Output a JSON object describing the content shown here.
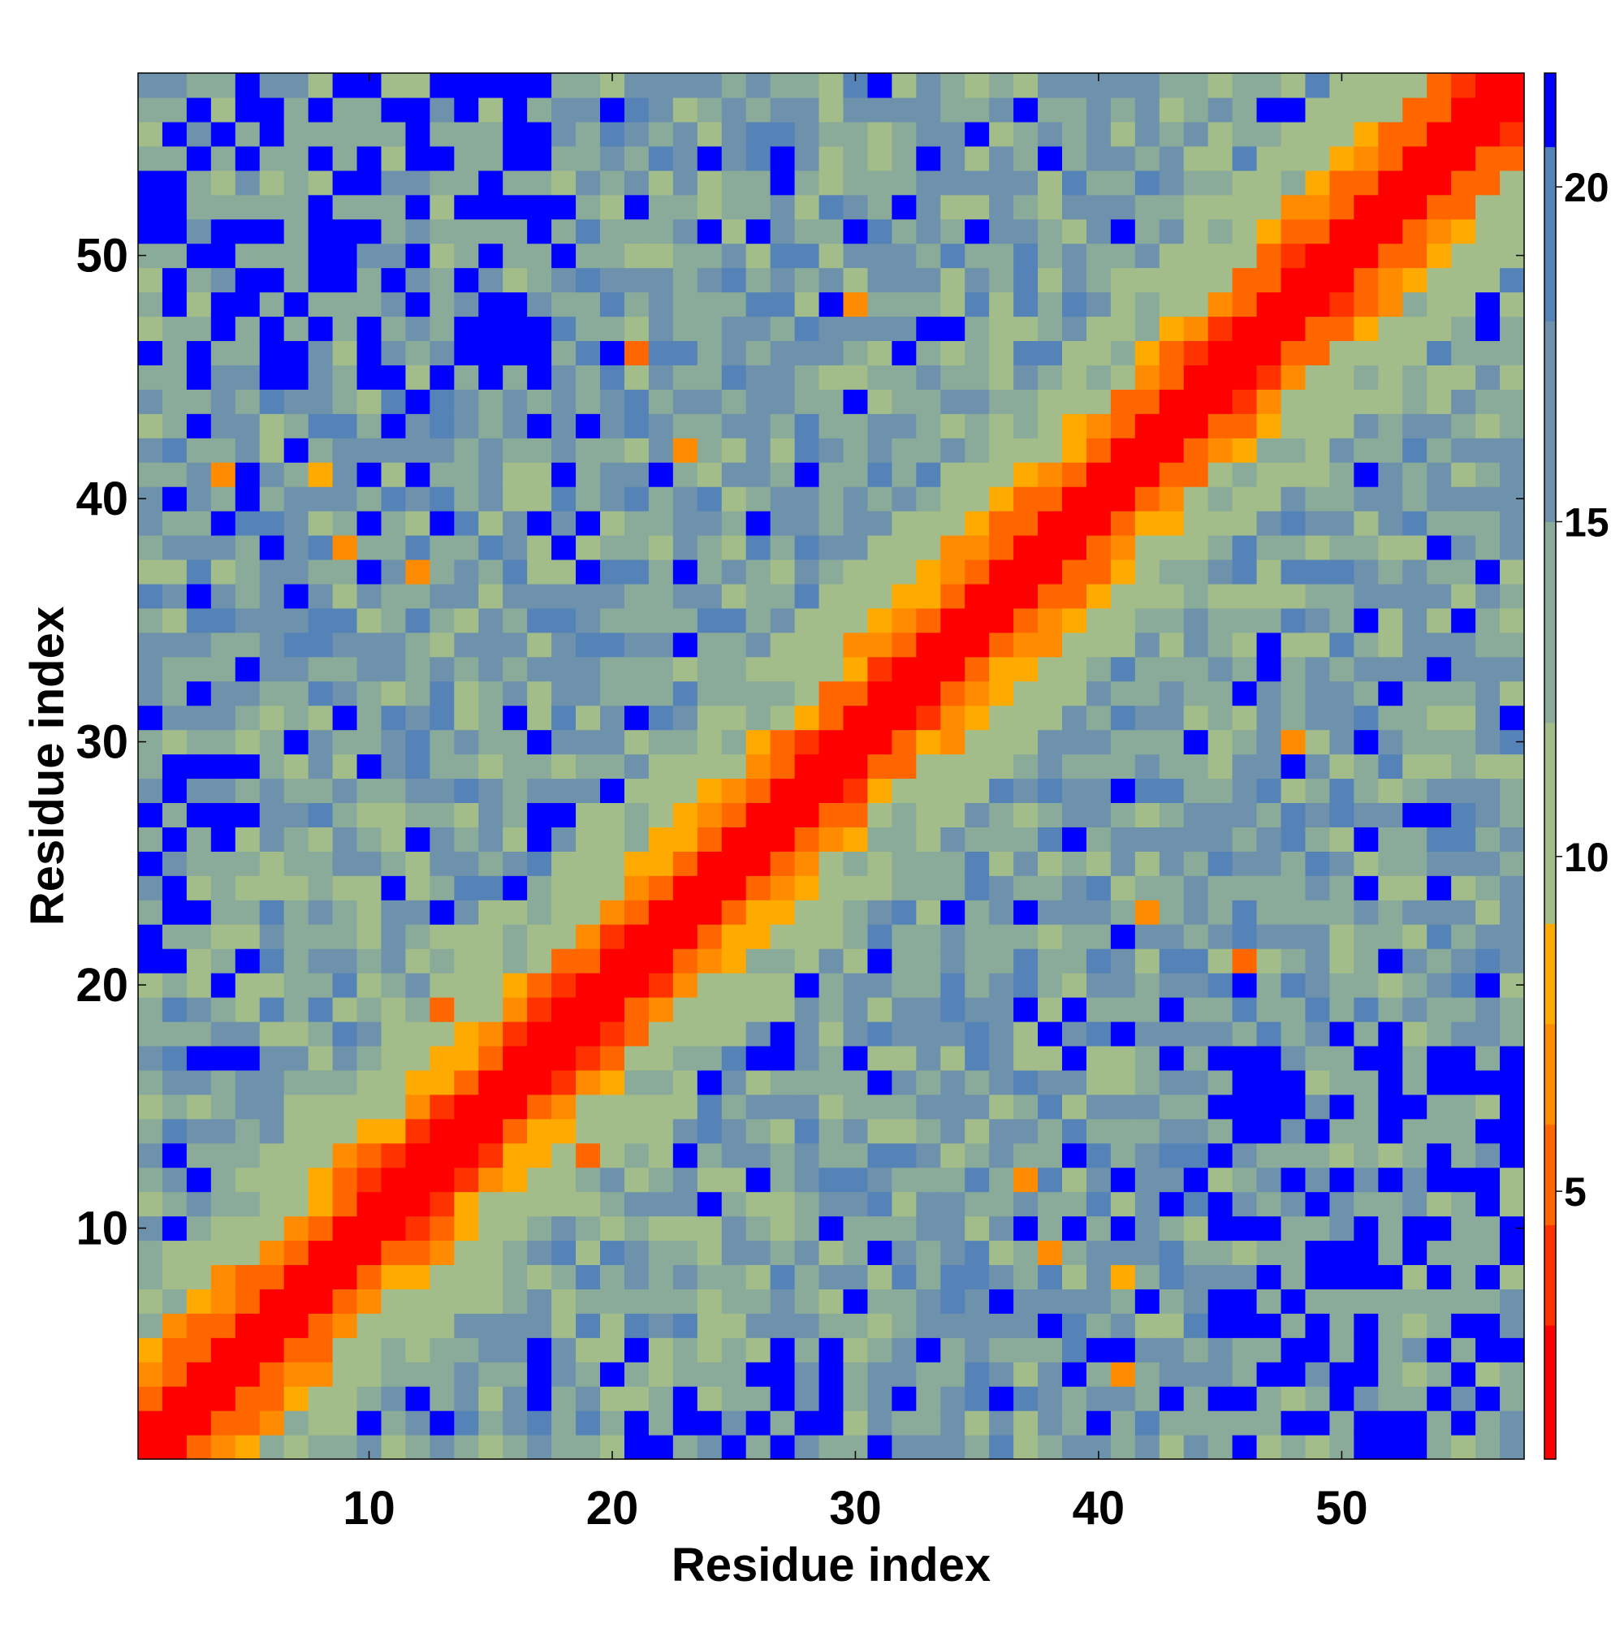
{
  "chart_data": {
    "type": "heatmap",
    "title": "",
    "xlabel": "Residue index",
    "ylabel": "Residue index",
    "xlim": [
      0.5,
      57.5
    ],
    "ylim": [
      0.5,
      57.5
    ],
    "x_ticks": [
      10,
      20,
      30,
      40,
      50
    ],
    "y_ticks": [
      10,
      20,
      30,
      40,
      50
    ],
    "n_residues": 57,
    "grid": false,
    "colorbar": {
      "position": "right",
      "range": [
        1,
        21.7
      ],
      "ticks": [
        5,
        10,
        15,
        20
      ],
      "bands": [
        {
          "from": 1,
          "to": 3,
          "color": "#ff0000"
        },
        {
          "from": 3,
          "to": 4.5,
          "color": "#ff3300"
        },
        {
          "from": 4.5,
          "to": 6,
          "color": "#ff6600"
        },
        {
          "from": 6,
          "to": 7.5,
          "color": "#ff8c00"
        },
        {
          "from": 7.5,
          "to": 9,
          "color": "#ffaa00"
        },
        {
          "from": 9,
          "to": 12,
          "color": "#a3bd8a"
        },
        {
          "from": 12,
          "to": 15,
          "color": "#8aab99"
        },
        {
          "from": 15,
          "to": 18,
          "color": "#6e92ab"
        },
        {
          "from": 18,
          "to": 20.6,
          "color": "#5583b8"
        },
        {
          "from": 20.6,
          "to": 21.7,
          "color": "#0000ff"
        }
      ]
    },
    "matrix_summary": "Symmetric residue-residue distance map: values near 1-3 on the diagonal (red), rising to 5-9 within about 2-4 residues of the diagonal (orange), 10-18 at intermediate separations (green to steel blue), and above 20.6 (blue) for the most distant residue pairs, concentrated near the corners (1,57)/(57,1) and in patches around residues 1-17 vs 45-57.",
    "highlighted_contacts": [
      {
        "i": 12,
        "j": 37,
        "value": 6
      },
      {
        "i": 9,
        "j": 38,
        "value": 7
      },
      {
        "i": 8,
        "j": 41,
        "value": 8
      },
      {
        "i": 4,
        "j": 41,
        "value": 6
      },
      {
        "i": 13,
        "j": 19,
        "value": 5
      },
      {
        "i": 21,
        "j": 46,
        "value": 5
      },
      {
        "i": 23,
        "j": 42,
        "value": 6
      },
      {
        "i": 30,
        "j": 48,
        "value": 6
      }
    ]
  }
}
